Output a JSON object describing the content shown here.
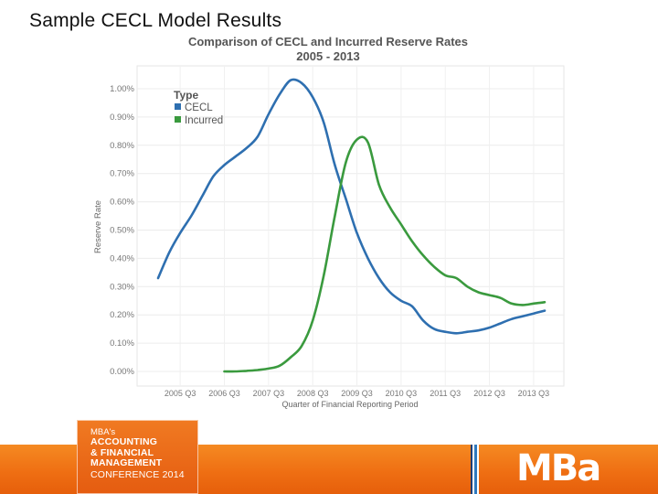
{
  "slide_title": "Sample CECL Model Results",
  "chart_data": {
    "type": "line",
    "title": "Comparison of CECL and Incurred Reserve Rates",
    "subtitle": "2005 - 2013",
    "xlabel": "Quarter of Financial Reporting Period",
    "ylabel": "Reserve Rate",
    "x_domain": [
      2005.0,
      2014.0
    ],
    "ylim": [
      0.0,
      1.0
    ],
    "y_ticks": [
      0.0,
      0.1,
      0.2,
      0.3,
      0.4,
      0.5,
      0.6,
      0.7,
      0.8,
      0.9,
      1.0
    ],
    "y_tick_labels": [
      "0.00%",
      "0.10%",
      "0.20%",
      "0.30%",
      "0.40%",
      "0.50%",
      "0.60%",
      "0.70%",
      "0.80%",
      "0.90%",
      "1.00%"
    ],
    "x_ticks": [
      2005.5,
      2006.5,
      2007.5,
      2008.5,
      2009.5,
      2010.5,
      2011.5,
      2012.5,
      2013.5
    ],
    "x_tick_labels": [
      "2005 Q3",
      "2006 Q3",
      "2007 Q3",
      "2008 Q3",
      "2009 Q3",
      "2010 Q3",
      "2011 Q3",
      "2012 Q3",
      "2013 Q3"
    ],
    "grid": true,
    "legend": {
      "title": "Type",
      "placement": "top-left"
    },
    "series": [
      {
        "name": "CECL",
        "color": "#2e6fb0",
        "x": [
          2005.0,
          2005.25,
          2005.5,
          2005.75,
          2006.0,
          2006.25,
          2006.5,
          2006.75,
          2007.0,
          2007.25,
          2007.5,
          2007.75,
          2008.0,
          2008.25,
          2008.5,
          2008.75,
          2009.0,
          2009.25,
          2009.5,
          2009.75,
          2010.0,
          2010.25,
          2010.5,
          2010.75,
          2011.0,
          2011.25,
          2011.5,
          2011.75,
          2012.0,
          2012.25,
          2012.5,
          2012.75,
          2013.0,
          2013.25,
          2013.5,
          2013.75
        ],
        "values": [
          0.33,
          0.42,
          0.49,
          0.55,
          0.62,
          0.69,
          0.73,
          0.76,
          0.79,
          0.83,
          0.91,
          0.98,
          1.03,
          1.02,
          0.97,
          0.88,
          0.73,
          0.61,
          0.49,
          0.4,
          0.33,
          0.28,
          0.25,
          0.23,
          0.18,
          0.15,
          0.14,
          0.135,
          0.14,
          0.145,
          0.155,
          0.17,
          0.185,
          0.195,
          0.205,
          0.215
        ]
      },
      {
        "name": "Incurred",
        "color": "#3a9a3e",
        "x": [
          2006.5,
          2006.75,
          2007.0,
          2007.25,
          2007.5,
          2007.75,
          2008.0,
          2008.25,
          2008.5,
          2008.75,
          2009.0,
          2009.25,
          2009.5,
          2009.75,
          2010.0,
          2010.25,
          2010.5,
          2010.75,
          2011.0,
          2011.25,
          2011.5,
          2011.75,
          2012.0,
          2012.25,
          2012.5,
          2012.75,
          2013.0,
          2013.25,
          2013.5,
          2013.75
        ],
        "values": [
          0.0,
          0.0,
          0.002,
          0.005,
          0.01,
          0.02,
          0.05,
          0.09,
          0.18,
          0.34,
          0.55,
          0.74,
          0.82,
          0.81,
          0.66,
          0.58,
          0.52,
          0.46,
          0.41,
          0.37,
          0.34,
          0.33,
          0.3,
          0.28,
          0.27,
          0.26,
          0.24,
          0.235,
          0.24,
          0.245
        ]
      }
    ]
  },
  "footer": {
    "conference_lines": [
      "MBA's",
      "ACCOUNTING",
      "& FINANCIAL",
      "MANAGEMENT",
      "CONFERENCE 2014"
    ],
    "logo_text": "MBa"
  },
  "colors": {
    "footer_orange": "#ef6f13",
    "stripe_blue": "#2f79bd"
  }
}
